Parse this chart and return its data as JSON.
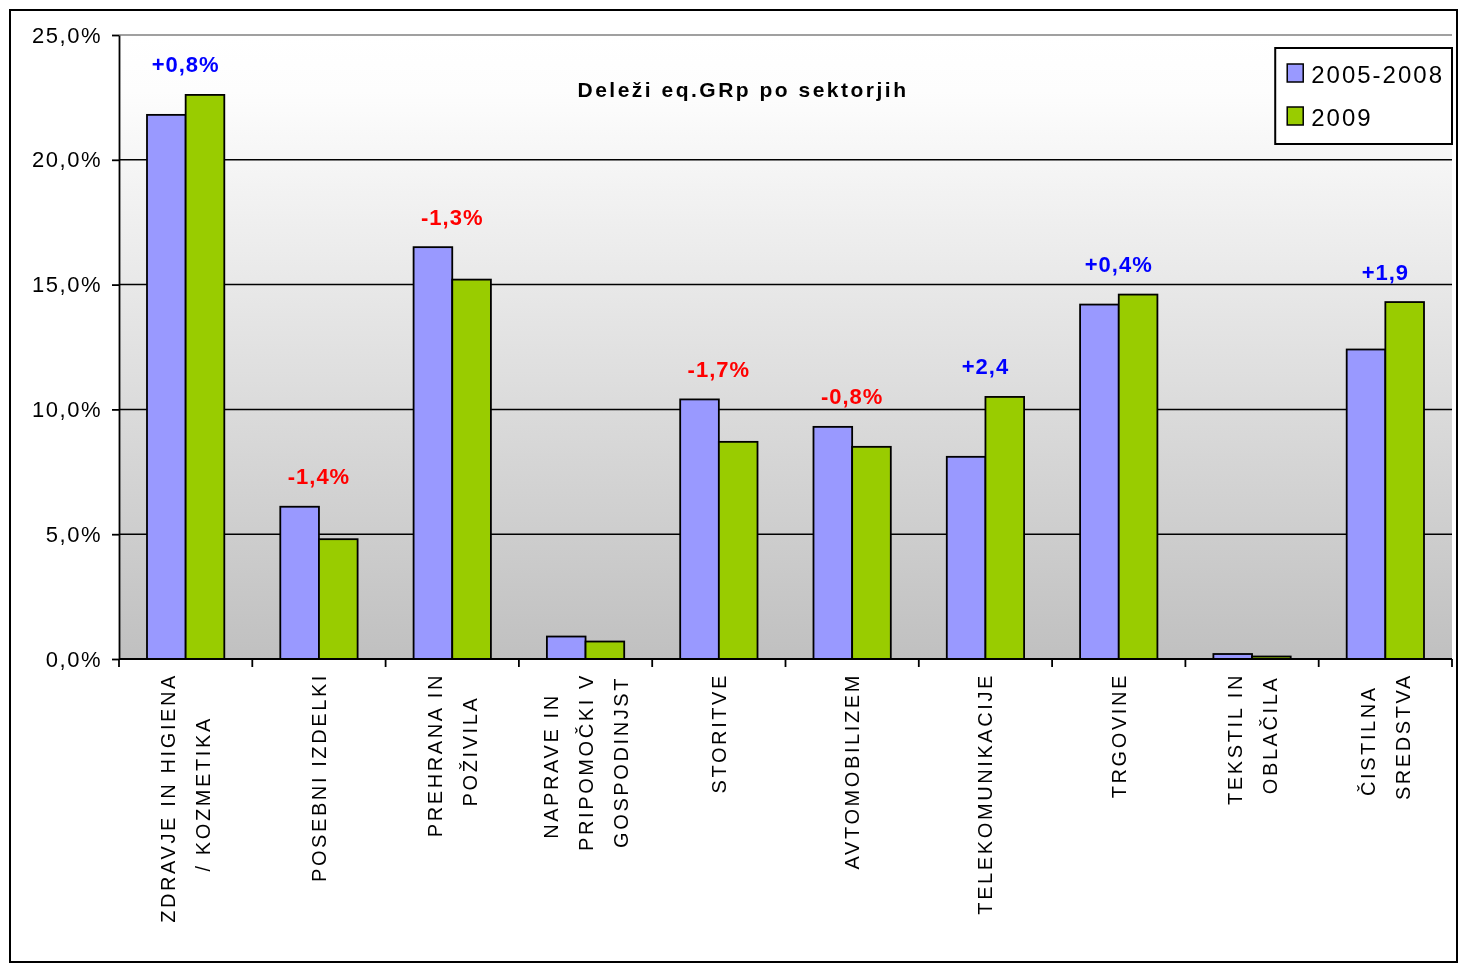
{
  "chart_data": {
    "type": "bar",
    "title": "Deleži eq.GRp po sektorjih",
    "categories": [
      "ZDRAVJE IN HIGIENA\n/ KOZMETIKA",
      "POSEBNI IZDELKI",
      "PREHRANA IN\nPOŽIVILA",
      "NAPRAVE IN\nPRIPOMOČKI V\nGOSPODINJST",
      "STORITVE",
      "AVTOMOBILIZEM",
      "TELEKOMUNIKACIJE",
      "TRGOVINE",
      "TEKSTIL IN\nOBLAČILA",
      "ČISTILNA\nSREDSTVA"
    ],
    "series": [
      {
        "name": "2005-2008",
        "color": "#9999ff",
        "values": [
          21.8,
          6.1,
          16.5,
          0.9,
          10.4,
          9.3,
          8.1,
          14.2,
          0.2,
          12.4
        ]
      },
      {
        "name": "2009",
        "color": "#99cc00",
        "values": [
          22.6,
          4.8,
          15.2,
          0.7,
          8.7,
          8.5,
          10.5,
          14.6,
          0.1,
          14.3
        ]
      }
    ],
    "ylim": [
      0,
      25
    ],
    "yticks": [
      {
        "value": 0,
        "label": "0,0%"
      },
      {
        "value": 5,
        "label": "5,0%"
      },
      {
        "value": 10,
        "label": "10,0%"
      },
      {
        "value": 15,
        "label": "15,0%"
      },
      {
        "value": 20,
        "label": "20,0%"
      },
      {
        "value": 25,
        "label": "25,0%"
      }
    ],
    "grid": "y",
    "legend": "top right",
    "annotations": [
      {
        "text": "+0,8%",
        "x": "ZDRAVJE IN HIGIENA\n/ KOZMETIKA",
        "y": 22.6
      },
      {
        "text": "-1,4%",
        "x": "POSEBNI IZDELKI",
        "y": 6.1
      },
      {
        "text": "-1,3%",
        "x": "PREHRANA IN\nPOŽIVILA",
        "y": 16.5
      },
      {
        "text": "-1,7%",
        "x": "STORITVE",
        "y": 10.4
      },
      {
        "text": "-0,8%",
        "x": "AVTOMOBILIZEM",
        "y": 9.3
      },
      {
        "text": "+2,4",
        "x": "TELEKOMUNIKACIJE",
        "y": 10.5
      },
      {
        "text": "+0,4%",
        "x": "TRGOVINE",
        "y": 14.6
      },
      {
        "text": "+1,9",
        "x": "ČISTILNA\nSREDSTVA",
        "y": 14.3
      }
    ]
  }
}
